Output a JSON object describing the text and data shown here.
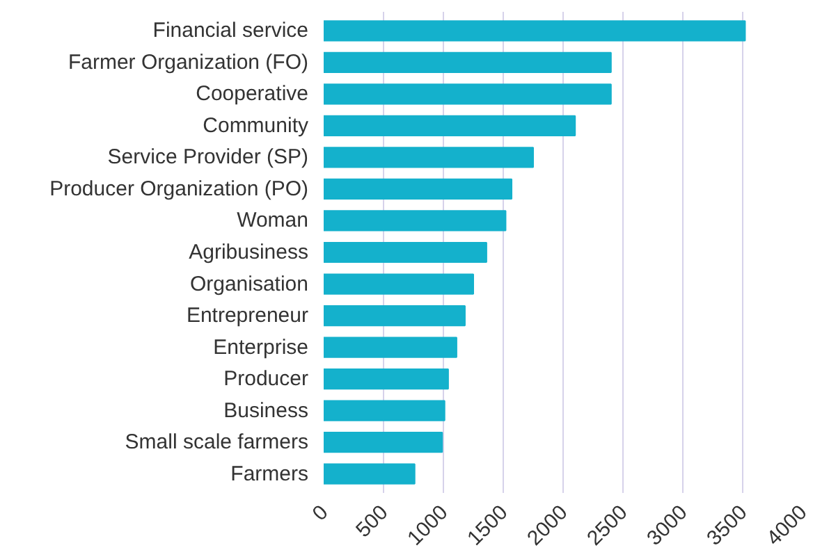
{
  "chart_data": {
    "type": "bar",
    "orientation": "horizontal",
    "categories": [
      "Financial service",
      "Farmer Organization (FO)",
      "Cooperative",
      "Community",
      "Service Provider (SP)",
      "Producer Organization (PO)",
      "Woman",
      "Agribusiness",
      "Organisation",
      "Entrepreneur",
      "Enterprise",
      "Producer",
      "Business",
      "Small scale farmers",
      "Farmers"
    ],
    "values": [
      3520,
      2400,
      2400,
      2100,
      1750,
      1570,
      1520,
      1360,
      1250,
      1180,
      1110,
      1040,
      1010,
      990,
      760
    ],
    "color": "#14b1cc",
    "xlim": [
      0,
      4000
    ],
    "xticks": [
      0,
      500,
      1000,
      1500,
      2000,
      2500,
      3000,
      3500,
      4000
    ],
    "grid": "x"
  }
}
